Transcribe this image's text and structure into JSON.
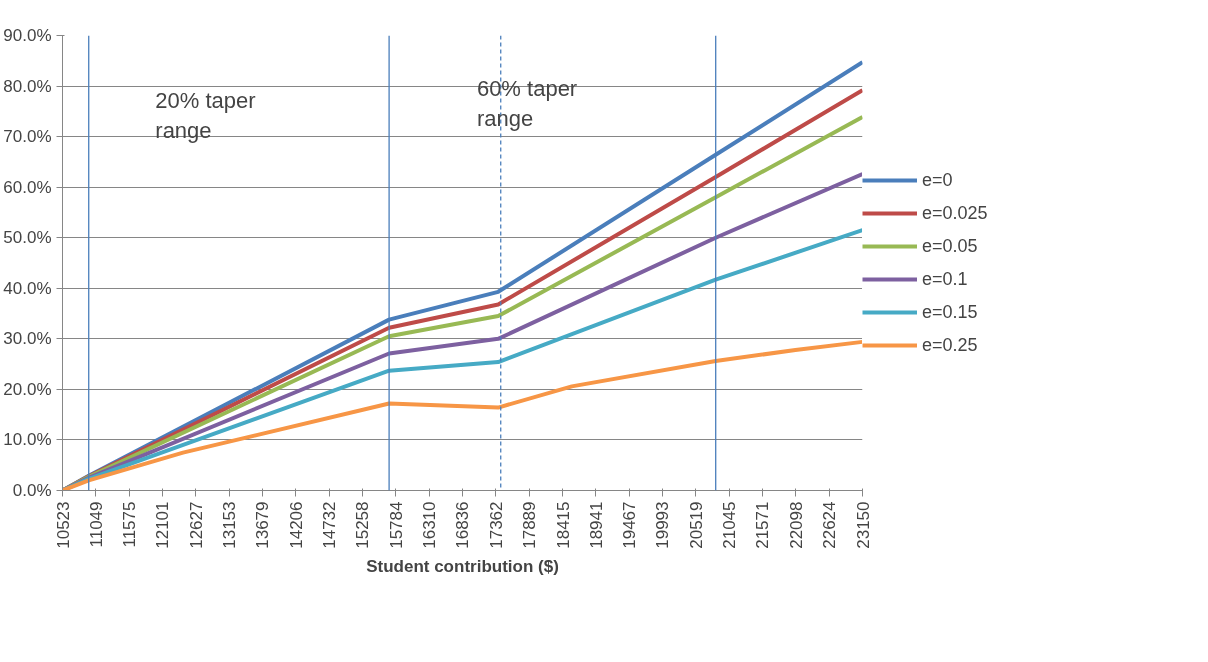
{
  "chart_data": {
    "type": "line",
    "xlabel": "Student contribution ($)",
    "x": [
      10523,
      10937,
      15678,
      17400,
      20833,
      23150
    ],
    "xlim": [
      10523,
      23150
    ],
    "xticks": [
      10523,
      11049,
      11575,
      12101,
      12627,
      13153,
      13679,
      14206,
      14732,
      15258,
      15784,
      16310,
      16836,
      17362,
      17889,
      18415,
      18941,
      19467,
      19993,
      20519,
      21045,
      21571,
      22098,
      22624,
      23150
    ],
    "ylim": [
      0,
      0.9
    ],
    "yticks": [
      {
        "value": 0,
        "label": "0.0%"
      },
      {
        "value": 0.1,
        "label": "10.0%"
      },
      {
        "value": 0.2,
        "label": "20.0%"
      },
      {
        "value": 0.3,
        "label": "30.0%"
      },
      {
        "value": 0.4,
        "label": "40.0%"
      },
      {
        "value": 0.5,
        "label": "50.0%"
      },
      {
        "value": 0.6,
        "label": "60.0%"
      },
      {
        "value": 0.7,
        "label": "70.0%"
      },
      {
        "value": 0.8,
        "label": "80.0%"
      },
      {
        "value": 0.9,
        "label": "90.0%"
      }
    ],
    "series": [
      {
        "name": "e=0",
        "color": "#4a7ebb",
        "values": [
          0,
          0.029,
          0.338,
          0.393,
          0.664,
          0.847
        ]
      },
      {
        "name": "e=0.025",
        "color": "#be4b48",
        "values": [
          0,
          0.028,
          0.322,
          0.368,
          0.62,
          0.792
        ]
      },
      {
        "name": "e=0.05",
        "color": "#98b954",
        "values": [
          0,
          0.027,
          0.305,
          0.345,
          0.58,
          0.739
        ]
      },
      {
        "name": "e=0.1",
        "color": "#7d60a0",
        "values": [
          0,
          0.025,
          0.271,
          0.3,
          0.5,
          0.626
        ]
      },
      {
        "name": "e=0.15",
        "color": "#46aac5",
        "values": [
          0,
          0.023,
          0.237,
          0.254,
          0.417,
          0.515
        ]
      },
      {
        "name": "e=0.25",
        "color": "#f79646",
        "x": [
          10523,
          10937,
          12425,
          15678,
          17400,
          18562,
          20833,
          22091,
          23150
        ],
        "values": [
          0,
          0.02,
          0.075,
          0.172,
          0.164,
          0.206,
          0.256,
          0.278,
          0.294
        ]
      }
    ],
    "ref_lines": [
      {
        "axis": "x",
        "value": 10937,
        "color": "#4a7ebb",
        "line_style": "solid"
      },
      {
        "axis": "x",
        "value": 15678,
        "color": "#4a7ebb",
        "line_style": "solid"
      },
      {
        "axis": "x",
        "value": 17440,
        "color": "#4a7ebb",
        "line_style": "dashed"
      },
      {
        "axis": "x",
        "value": 20833,
        "color": "#4a7ebb",
        "line_style": "solid"
      }
    ],
    "annotations": [
      "20% taper\nrange",
      "60% taper\nrange"
    ],
    "grid": "y",
    "legend": "right",
    "line_style": "solid"
  }
}
